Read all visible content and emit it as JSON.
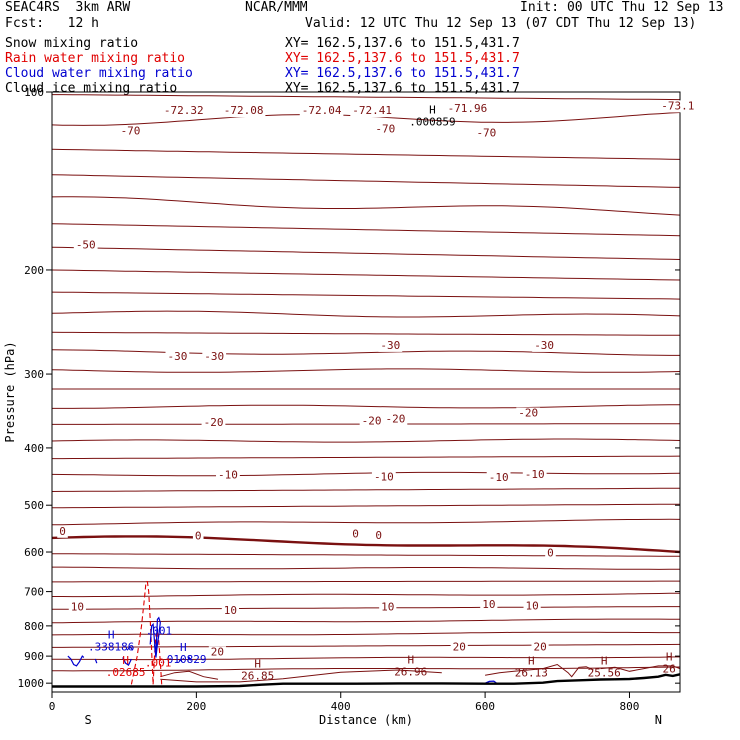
{
  "header": {
    "experiment": "SEAC4RS  3km ARW",
    "center": "NCAR/MMM",
    "init": "Init: 00 UTC Thu 12 Sep 13",
    "fcst": "Fcst:   12 h",
    "valid": "Valid: 12 UTC Thu 12 Sep 13 (07 CDT Thu 12 Sep 13)"
  },
  "fields": [
    {
      "label": "Snow mixing ratio",
      "xy": "XY= 162.5,137.6 to 151.5,431.7",
      "color": "#000000"
    },
    {
      "label": "Rain water mixing ratio",
      "xy": "XY= 162.5,137.6 to 151.5,431.7",
      "color": "#e00000"
    },
    {
      "label": "Cloud water mixing ratio",
      "xy": "XY= 162.5,137.6 to 151.5,431.7",
      "color": "#0000d0"
    },
    {
      "label": "Cloud ice mixing ratio",
      "xy": "XY= 162.5,137.6 to 151.5,431.7",
      "color": "#000000"
    }
  ],
  "colors": {
    "temperature": "#7a1010",
    "rain": "#e00000",
    "cloud": "#0000d0",
    "terrain": "#000000",
    "ice": "#000000"
  },
  "chart_data": {
    "type": "line",
    "title": "",
    "xlabel": "Distance (km)",
    "ylabel": "Pressure (hPa)",
    "xlim": [
      0,
      870
    ],
    "ylim": [
      1035,
      100
    ],
    "y_scale": "log",
    "xticks": [
      0,
      200,
      400,
      600,
      800
    ],
    "yticks": [
      100,
      200,
      300,
      400,
      500,
      600,
      700,
      800,
      900,
      1000
    ],
    "x_end_labels": [
      "S",
      "N"
    ],
    "isotherm_series": [
      {
        "p_left": 101,
        "p_right": 103,
        "bump": 0
      },
      {
        "p_left": 112,
        "p_right": 110,
        "bump": 2
      },
      {
        "p_left": 125,
        "p_right": 130,
        "bump": 0
      },
      {
        "p_left": 138,
        "p_right": 145,
        "bump": 0
      },
      {
        "p_left": 152,
        "p_right": 160,
        "bump": 2
      },
      {
        "p_left": 167,
        "p_right": 175,
        "bump": 0
      },
      {
        "p_left": 183,
        "p_right": 192,
        "bump": 0
      },
      {
        "p_left": 200,
        "p_right": 208,
        "bump": 0
      },
      {
        "p_left": 218,
        "p_right": 224,
        "bump": 0
      },
      {
        "p_left": 236,
        "p_right": 240,
        "bump": 2
      },
      {
        "p_left": 255,
        "p_right": 258,
        "bump": 0
      },
      {
        "p_left": 275,
        "p_right": 277,
        "bump": 2
      },
      {
        "p_left": 296,
        "p_right": 296,
        "bump": 2
      },
      {
        "p_left": 318,
        "p_right": 318,
        "bump": 0
      },
      {
        "p_left": 341,
        "p_right": 340,
        "bump": 2
      },
      {
        "p_left": 365,
        "p_right": 364,
        "bump": 0
      },
      {
        "p_left": 390,
        "p_right": 388,
        "bump": 2
      },
      {
        "p_left": 417,
        "p_right": 413,
        "bump": 0
      },
      {
        "p_left": 445,
        "p_right": 440,
        "bump": 2
      },
      {
        "p_left": 474,
        "p_right": 468,
        "bump": 0
      },
      {
        "p_left": 505,
        "p_right": 498,
        "bump": 0
      },
      {
        "p_left": 538,
        "p_right": 530,
        "bump": 2
      },
      {
        "p_left": 568,
        "p_right": 600,
        "bump": 5,
        "bold": true
      },
      {
        "p_left": 604,
        "p_right": 610,
        "bump": 0
      },
      {
        "p_left": 638,
        "p_right": 640,
        "bump": 2
      },
      {
        "p_left": 674,
        "p_right": 672,
        "bump": 0
      },
      {
        "p_left": 712,
        "p_right": 706,
        "bump": 2
      },
      {
        "p_left": 750,
        "p_right": 742,
        "bump": 0
      },
      {
        "p_left": 790,
        "p_right": 780,
        "bump": 2
      },
      {
        "p_left": 830,
        "p_right": 820,
        "bump": 2
      },
      {
        "p_left": 870,
        "p_right": 860,
        "bump": 0
      },
      {
        "p_left": 912,
        "p_right": 902,
        "bump": 2
      },
      {
        "p_left": 952,
        "p_right": 940,
        "bump": 2
      }
    ],
    "terrain": {
      "x": [
        0,
        100,
        200,
        260,
        290,
        320,
        360,
        420,
        480,
        540,
        600,
        640,
        680,
        700,
        720,
        740,
        760,
        780,
        800,
        820,
        840,
        850,
        860,
        870
      ],
      "p": [
        1013,
        1013,
        1013,
        1011,
        1006,
        1002,
        1002,
        1002,
        1001,
        1001,
        1002,
        1002,
        998,
        992,
        990,
        988,
        986,
        985,
        984,
        980,
        975,
        968,
        972,
        966
      ]
    },
    "temperature_labels": [
      {
        "x": 95,
        "p": 118,
        "text": "-70"
      },
      {
        "x": 155,
        "p": 109,
        "text": "-72.32"
      },
      {
        "x": 238,
        "p": 109,
        "text": "-72.08"
      },
      {
        "x": 346,
        "p": 109,
        "text": "-72.04"
      },
      {
        "x": 416,
        "p": 109,
        "text": "-72.41"
      },
      {
        "x": 548,
        "p": 108,
        "text": "-71.96"
      },
      {
        "x": 588,
        "p": 119,
        "text": "-70"
      },
      {
        "x": 844,
        "p": 107,
        "text": "-73.1"
      },
      {
        "x": 448,
        "p": 117,
        "text": "-70"
      },
      {
        "x": 33,
        "p": 184,
        "text": "-50"
      },
      {
        "x": 160,
        "p": 284,
        "text": "-30"
      },
      {
        "x": 211,
        "p": 284,
        "text": "-30"
      },
      {
        "x": 455,
        "p": 272,
        "text": "-30"
      },
      {
        "x": 668,
        "p": 272,
        "text": "-30"
      },
      {
        "x": 210,
        "p": 367,
        "text": "-20"
      },
      {
        "x": 429,
        "p": 365,
        "text": "-20"
      },
      {
        "x": 462,
        "p": 362,
        "text": "-20"
      },
      {
        "x": 646,
        "p": 354,
        "text": "-20"
      },
      {
        "x": 230,
        "p": 451,
        "text": "-10"
      },
      {
        "x": 446,
        "p": 454,
        "text": "-10"
      },
      {
        "x": 605,
        "p": 455,
        "text": "-10"
      },
      {
        "x": 655,
        "p": 450,
        "text": "-10"
      },
      {
        "x": 10,
        "p": 561,
        "text": "0"
      },
      {
        "x": 198,
        "p": 572,
        "text": "0"
      },
      {
        "x": 416,
        "p": 567,
        "text": "0"
      },
      {
        "x": 448,
        "p": 570,
        "text": "0"
      },
      {
        "x": 686,
        "p": 610,
        "text": "0"
      },
      {
        "x": 26,
        "p": 753,
        "text": "10"
      },
      {
        "x": 238,
        "p": 764,
        "text": "10"
      },
      {
        "x": 456,
        "p": 753,
        "text": "10"
      },
      {
        "x": 596,
        "p": 746,
        "text": "10"
      },
      {
        "x": 656,
        "p": 750,
        "text": "10"
      },
      {
        "x": 220,
        "p": 897,
        "text": "20"
      },
      {
        "x": 555,
        "p": 880,
        "text": "20"
      },
      {
        "x": 667,
        "p": 880,
        "text": "20"
      }
    ],
    "extrema_labels": [
      {
        "x": 527,
        "p": 114,
        "text": "H",
        "value": ".000859",
        "color": "#000000"
      },
      {
        "x": 82,
        "p": 880,
        "text": "H",
        "value": ".338186",
        "color": "#0000d0"
      },
      {
        "x": 182,
        "p": 925,
        "text": "H",
        "value": ".010829",
        "color": "#0000d0"
      },
      {
        "x": 102,
        "p": 972,
        "text": "H",
        "value": ".02685",
        "color": "#e00000"
      },
      {
        "x": 285,
        "p": 985,
        "text": "H",
        "value": "26.85",
        "color": "#7a1010"
      },
      {
        "x": 497,
        "p": 970,
        "text": "H",
        "value": "26.96",
        "color": "#7a1010"
      },
      {
        "x": 664,
        "p": 975,
        "text": "H",
        "value": "26.13",
        "color": "#7a1010"
      },
      {
        "x": 765,
        "p": 975,
        "text": "H",
        "value": "25.56",
        "color": "#7a1010"
      },
      {
        "x": 855,
        "p": 960,
        "text": "H",
        "value": "26",
        "color": "#7a1010"
      }
    ],
    "misc_labels": [
      {
        "x": 148,
        "p": 827,
        "text": ".001",
        "color": "#0000d0"
      },
      {
        "x": 147,
        "p": 938,
        "text": ".001",
        "color": "#e00000"
      }
    ],
    "rain_contours": [
      {
        "x": [
          110,
          118,
          124,
          128,
          130,
          132
        ],
        "p": [
          1005,
          900,
          800,
          720,
          680,
          672
        ]
      },
      {
        "x": [
          132,
          134,
          136,
          138,
          140
        ],
        "p": [
          672,
          700,
          780,
          880,
          1005
        ]
      },
      {
        "x": [
          140,
          142,
          144,
          146
        ],
        "p": [
          1005,
          900,
          830,
          820
        ]
      },
      {
        "x": [
          146,
          148,
          150,
          152
        ],
        "p": [
          820,
          850,
          920,
          1005
        ]
      }
    ],
    "cloud_contours": [
      {
        "x": [
          22,
          26,
          30,
          34,
          38,
          42,
          44
        ],
        "p": [
          900,
          910,
          930,
          935,
          920,
          900,
          905
        ]
      },
      {
        "x": [
          60,
          62
        ],
        "p": [
          910,
          925
        ]
      },
      {
        "x": [
          98,
          102,
          106,
          110
        ],
        "p": [
          905,
          925,
          932,
          910
        ]
      },
      {
        "x": [
          104,
          108,
          112
        ],
        "p": [
          880,
          868,
          880
        ]
      },
      {
        "x": [
          136,
          138,
          140,
          142,
          144,
          146,
          148,
          150,
          148,
          146,
          144,
          142
        ],
        "p": [
          860,
          800,
          795,
          850,
          900,
          780,
          775,
          790,
          830,
          860,
          905,
          860
        ]
      },
      {
        "x": [
          176,
          178,
          180
        ],
        "p": [
          920,
          912,
          920
        ]
      },
      {
        "x": [
          188,
          190,
          192
        ],
        "p": [
          915,
          905,
          915
        ]
      },
      {
        "x": [
          600,
          606,
          612,
          616
        ],
        "p": [
          1000,
          993,
          992,
          1000
        ]
      }
    ],
    "ridge_contours": [
      {
        "x": [
          600,
          620,
          640,
          660,
          680,
          700,
          715,
          720,
          730,
          740,
          750
        ],
        "p": [
          970,
          960,
          955,
          950,
          945,
          930,
          960,
          975,
          940,
          938,
          950
        ]
      },
      {
        "x": [
          150,
          200,
          260,
          320,
          400,
          480,
          540
        ],
        "p": [
          985,
          995,
          995,
          983,
          958,
          950,
          960
        ]
      },
      {
        "x": [
          150,
          170,
          190,
          210,
          230
        ],
        "p": [
          975,
          960,
          955,
          975,
          985
        ]
      },
      {
        "x": [
          760,
          780,
          800,
          820,
          840,
          860,
          870
        ],
        "p": [
          945,
          940,
          955,
          945,
          935,
          935,
          945
        ]
      }
    ]
  }
}
